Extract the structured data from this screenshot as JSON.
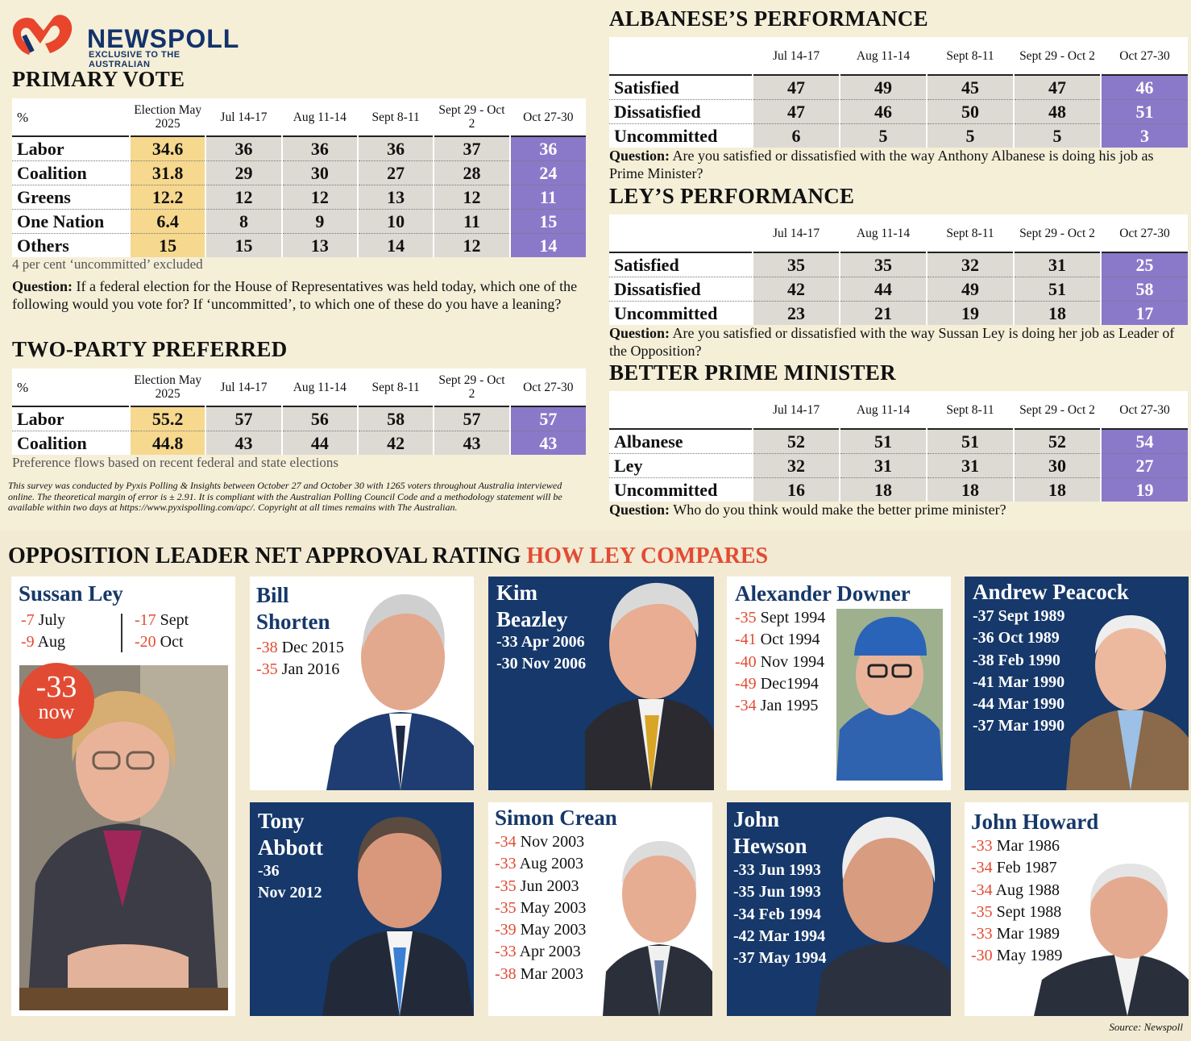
{
  "logo": {
    "name": "NEWSPOLL",
    "tagline": "EXCLUSIVE TO THE AUSTRALIAN"
  },
  "colors": {
    "election_col": "#f6d88e",
    "current_col": "#8a79c9",
    "data_col": "#dcdad2",
    "accent_red": "#e24b33",
    "navy": "#16386a"
  },
  "primary_vote": {
    "title": "PRIMARY VOTE",
    "note": "4 per cent ‘uncommitted’ excluded",
    "question_label": "Question:",
    "question_text": "If a federal election for the House of Representatives was held today, which one of the following would you vote for? If ‘uncommitted’, to which one of these do you have a leaning?"
  },
  "two_party": {
    "title": "TWO-PARTY PREFERRED",
    "note": "Preference flows based on recent federal and state elections",
    "fine_print": "This survey was conducted by Pyxis Polling & Insights between October 27 and October 30 with 1265 voters throughout Australia interviewed online. The theoretical margin of error is ± 2.91. It is compliant with the Australian Polling Council Code and a methodology statement will be available within two days at https://www.pyxispolling.com/apc/. Copyright at all times remains with The Australian."
  },
  "albanese": {
    "title": "ALBANESE’S PERFORMANCE",
    "question_label": "Question:",
    "question_text": "Are you satisfied or dissatisfied with the way Anthony Albanese is doing his job as Prime Minister?"
  },
  "ley": {
    "title": "LEY’S PERFORMANCE",
    "question_label": "Question:",
    "question_text": "Are you satisfied or dissatisfied with the way Sussan Ley is doing her job as Leader of the Opposition?"
  },
  "bpm": {
    "title": "BETTER PRIME MINISTER",
    "question_label": "Question:",
    "question_text": "Who do you think would make the better prime minister?"
  },
  "chart_data": [
    {
      "type": "table",
      "id": "primary_vote",
      "title": "PRIMARY VOTE",
      "corner": "%",
      "columns": [
        "Election May 2025",
        "Jul 14-17",
        "Aug 11-14",
        "Sept 8-11",
        "Sept 29 - Oct 2",
        "Oct 27-30"
      ],
      "rows": [
        {
          "label": "Labor",
          "values": [
            "34.6",
            "36",
            "36",
            "36",
            "37",
            "36"
          ]
        },
        {
          "label": "Coalition",
          "values": [
            "31.8",
            "29",
            "30",
            "27",
            "28",
            "24"
          ]
        },
        {
          "label": "Greens",
          "values": [
            "12.2",
            "12",
            "12",
            "13",
            "12",
            "11"
          ]
        },
        {
          "label": "One Nation",
          "values": [
            "6.4",
            "8",
            "9",
            "10",
            "11",
            "15"
          ]
        },
        {
          "label": "Others",
          "values": [
            "15",
            "15",
            "13",
            "14",
            "12",
            "14"
          ]
        }
      ]
    },
    {
      "type": "table",
      "id": "two_party",
      "title": "TWO-PARTY PREFERRED",
      "corner": "%",
      "columns": [
        "Election May 2025",
        "Jul 14-17",
        "Aug 11-14",
        "Sept 8-11",
        "Sept 29 - Oct 2",
        "Oct 27-30"
      ],
      "rows": [
        {
          "label": "Labor",
          "values": [
            "55.2",
            "57",
            "56",
            "58",
            "57",
            "57"
          ]
        },
        {
          "label": "Coalition",
          "values": [
            "44.8",
            "43",
            "44",
            "42",
            "43",
            "43"
          ]
        }
      ]
    },
    {
      "type": "table",
      "id": "albanese",
      "title": "ALBANESE’S PERFORMANCE",
      "corner": "",
      "columns": [
        "Jul 14-17",
        "Aug 11-14",
        "Sept 8-11",
        "Sept 29 - Oct 2",
        "Oct 27-30"
      ],
      "rows": [
        {
          "label": "Satisfied",
          "values": [
            "47",
            "49",
            "45",
            "47",
            "46"
          ]
        },
        {
          "label": "Dissatisfied",
          "values": [
            "47",
            "46",
            "50",
            "48",
            "51"
          ]
        },
        {
          "label": "Uncommitted",
          "values": [
            "6",
            "5",
            "5",
            "5",
            "3"
          ]
        }
      ]
    },
    {
      "type": "table",
      "id": "ley",
      "title": "LEY’S PERFORMANCE",
      "corner": "",
      "columns": [
        "Jul 14-17",
        "Aug 11-14",
        "Sept  8-11",
        "Sept 29 - Oct 2",
        "Oct 27-30"
      ],
      "rows": [
        {
          "label": "Satisfied",
          "values": [
            "35",
            "35",
            "32",
            "31",
            "25"
          ]
        },
        {
          "label": "Dissatisfied",
          "values": [
            "42",
            "44",
            "49",
            "51",
            "58"
          ]
        },
        {
          "label": "Uncommitted",
          "values": [
            "23",
            "21",
            "19",
            "18",
            "17"
          ]
        }
      ]
    },
    {
      "type": "table",
      "id": "bpm",
      "title": "BETTER PRIME MINISTER",
      "corner": "",
      "columns": [
        "Jul 14-17",
        "Aug 11-14",
        "Sept 8-11",
        "Sept 29 - Oct 2",
        "Oct 27-30"
      ],
      "rows": [
        {
          "label": "Albanese",
          "values": [
            "52",
            "51",
            "51",
            "52",
            "54"
          ]
        },
        {
          "label": "Ley",
          "values": [
            "32",
            "31",
            "31",
            "30",
            "27"
          ]
        },
        {
          "label": "Uncommitted",
          "values": [
            "16",
            "18",
            "18",
            "18",
            "19"
          ]
        }
      ]
    }
  ],
  "comparison": {
    "title_main": "OPPOSITION LEADER NET APPROVAL RATING",
    "title_accent": "HOW LEY COMPARES",
    "ley": {
      "name": "Sussan Ley",
      "left": [
        {
          "value": "-7",
          "label": "July"
        },
        {
          "value": "-9",
          "label": "Aug"
        }
      ],
      "right": [
        {
          "value": "-17",
          "label": "Sept"
        },
        {
          "value": "-20",
          "label": "Oct"
        }
      ],
      "now_value": "-33",
      "now_label": "now"
    },
    "leaders": [
      {
        "id": "shorten",
        "name_lines": [
          "Bill",
          "Shorten"
        ],
        "ratings": [
          {
            "value": "-38",
            "label": "Dec 2015"
          },
          {
            "value": "-35",
            "label": "Jan 2016"
          }
        ]
      },
      {
        "id": "beazley",
        "name_lines": [
          "Kim",
          "Beazley"
        ],
        "ratings": [
          {
            "value": "-33",
            "label": "Apr 2006"
          },
          {
            "value": "-30",
            "label": "Nov 2006"
          }
        ]
      },
      {
        "id": "downer",
        "name_lines": [
          "Alexander Downer"
        ],
        "ratings": [
          {
            "value": "-35",
            "label": "Sept 1994"
          },
          {
            "value": "-41",
            "label": "Oct 1994"
          },
          {
            "value": "-40",
            "label": "Nov 1994"
          },
          {
            "value": "-49",
            "label": "Dec1994"
          },
          {
            "value": "-34",
            "label": "Jan 1995"
          }
        ]
      },
      {
        "id": "peacock",
        "name_lines": [
          "Andrew Peacock"
        ],
        "ratings": [
          {
            "value": "-37",
            "label": "Sept 1989"
          },
          {
            "value": "-36",
            "label": "Oct 1989"
          },
          {
            "value": "-38",
            "label": "Feb 1990"
          },
          {
            "value": "-41",
            "label": "Mar 1990"
          },
          {
            "value": "-44",
            "label": "Mar 1990"
          },
          {
            "value": "-37",
            "label": "Mar 1990"
          }
        ]
      },
      {
        "id": "abbott",
        "name_lines": [
          "Tony",
          "Abbott"
        ],
        "ratings": [
          {
            "value": "-36",
            "label": ""
          },
          {
            "value": "",
            "label": "Nov 2012"
          }
        ]
      },
      {
        "id": "crean",
        "name_lines": [
          "Simon Crean"
        ],
        "ratings": [
          {
            "value": "-34",
            "label": "Nov 2003"
          },
          {
            "value": "-33",
            "label": "Aug 2003"
          },
          {
            "value": "-35",
            "label": "Jun 2003"
          },
          {
            "value": "-35",
            "label": "May 2003"
          },
          {
            "value": "-39",
            "label": "May 2003"
          },
          {
            "value": "-33",
            "label": "Apr 2003"
          },
          {
            "value": "-38",
            "label": "Mar 2003"
          }
        ]
      },
      {
        "id": "hewson",
        "name_lines": [
          "John",
          "Hewson"
        ],
        "ratings": [
          {
            "value": "-33",
            "label": "Jun 1993"
          },
          {
            "value": "-35",
            "label": "Jun 1993"
          },
          {
            "value": "-34",
            "label": "Feb 1994"
          },
          {
            "value": "-42",
            "label": "Mar 1994"
          },
          {
            "value": "-37",
            "label": "May 1994"
          }
        ]
      },
      {
        "id": "howard",
        "name_lines": [
          "John Howard"
        ],
        "ratings": [
          {
            "value": "-33",
            "label": "Mar 1986"
          },
          {
            "value": "-34",
            "label": "Feb 1987"
          },
          {
            "value": "-34",
            "label": "Aug 1988"
          },
          {
            "value": "-35",
            "label": "Sept 1988"
          },
          {
            "value": "-33",
            "label": "Mar 1989"
          },
          {
            "value": "-30",
            "label": "May 1989"
          }
        ]
      }
    ],
    "source": "Source: Newspoll"
  }
}
